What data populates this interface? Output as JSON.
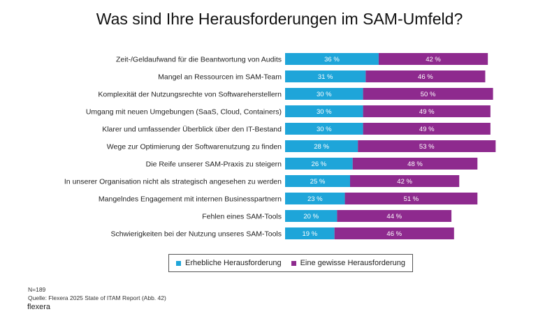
{
  "chart_data": {
    "type": "bar",
    "orientation": "horizontal",
    "stacked": true,
    "title": "Was sind Ihre Herausforderungen im SAM-Umfeld?",
    "categories": [
      "Zeit-/Geldaufwand für die Beantwortung von Audits",
      "Mangel an Ressourcen im SAM-Team",
      "Komplexität der Nutzungsrechte von Softwareherstellern",
      "Umgang mit neuen Umgebungen (SaaS, Cloud, Containers)",
      "Klarer und umfassender Überblick über den IT-Bestand",
      "Wege zur Optimierung der Softwarenutzung zu finden",
      "Die Reife unserer SAM-Praxis zu steigern",
      "In unserer Organisation nicht als strategisch angesehen zu werden",
      "Mangelndes Engagement mit internen Businesspartnern",
      "Fehlen eines SAM-Tools",
      "Schwierigkeiten bei der Nutzung unseres SAM-Tools"
    ],
    "series": [
      {
        "name": "Erhebliche Herausforderung",
        "color": "#1ea5d9",
        "values": [
          36,
          31,
          30,
          30,
          30,
          28,
          26,
          25,
          23,
          20,
          19
        ],
        "labels": [
          "36 %",
          "31 %",
          "30 %",
          "30 %",
          "30 %",
          "28 %",
          "26 %",
          "25 %",
          "23 %",
          "20 %",
          "19 %"
        ]
      },
      {
        "name": "Eine gewisse Herausforderung",
        "color": "#8e2a8e",
        "values": [
          42,
          46,
          50,
          49,
          49,
          53,
          48,
          42,
          51,
          44,
          46
        ],
        "labels": [
          "42 %",
          "46 %",
          "50 %",
          "49 %",
          "49 %",
          "53 %",
          "48 %",
          "42 %",
          "51 %",
          "44 %",
          "46 %"
        ]
      }
    ],
    "xlim": [
      0,
      100
    ],
    "grid": false,
    "legend_position": "bottom"
  },
  "footer": {
    "n": "N=189",
    "source": "Quelle: Flexera 2025 State of ITAM Report (Abb. 42)",
    "logo": "flexera"
  }
}
